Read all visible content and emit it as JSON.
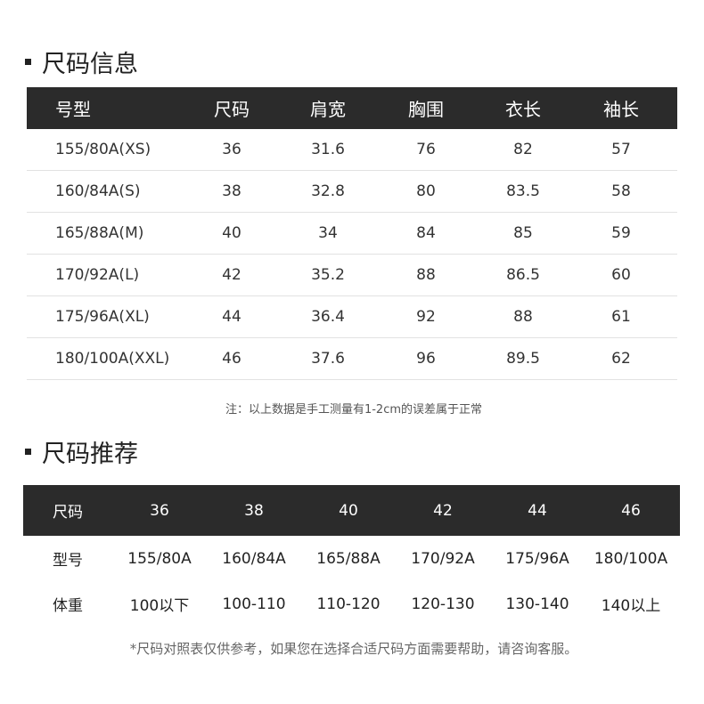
{
  "size_info": {
    "title": "尺码信息",
    "headers": [
      "号型",
      "尺码",
      "肩宽",
      "胸围",
      "衣长",
      "袖长"
    ],
    "rows": [
      [
        "155/80A(XS)",
        "36",
        "31.6",
        "76",
        "82",
        "57"
      ],
      [
        "160/84A(S)",
        "38",
        "32.8",
        "80",
        "83.5",
        "58"
      ],
      [
        "165/88A(M)",
        "40",
        "34",
        "84",
        "85",
        "59"
      ],
      [
        "170/92A(L)",
        "42",
        "35.2",
        "88",
        "86.5",
        "60"
      ],
      [
        "175/96A(XL)",
        "44",
        "36.4",
        "92",
        "88",
        "61"
      ],
      [
        "180/100A(XXL)",
        "46",
        "37.6",
        "96",
        "89.5",
        "62"
      ]
    ],
    "note": "注：以上数据是手工测量有1-2cm的误差属于正常"
  },
  "size_recommend": {
    "title": "尺码推荐",
    "header": [
      "尺码",
      "36",
      "38",
      "40",
      "42",
      "44",
      "46"
    ],
    "rows": [
      [
        "型号",
        "155/80A",
        "160/84A",
        "165/88A",
        "170/92A",
        "175/96A",
        "180/100A"
      ],
      [
        "体重",
        "100以下",
        "100-110",
        "110-120",
        "120-130",
        "130-140",
        "140以上"
      ]
    ],
    "footnote": "*尺码对照表仅供参考，如果您在选择合适尺码方面需要帮助，请咨询客服。"
  }
}
